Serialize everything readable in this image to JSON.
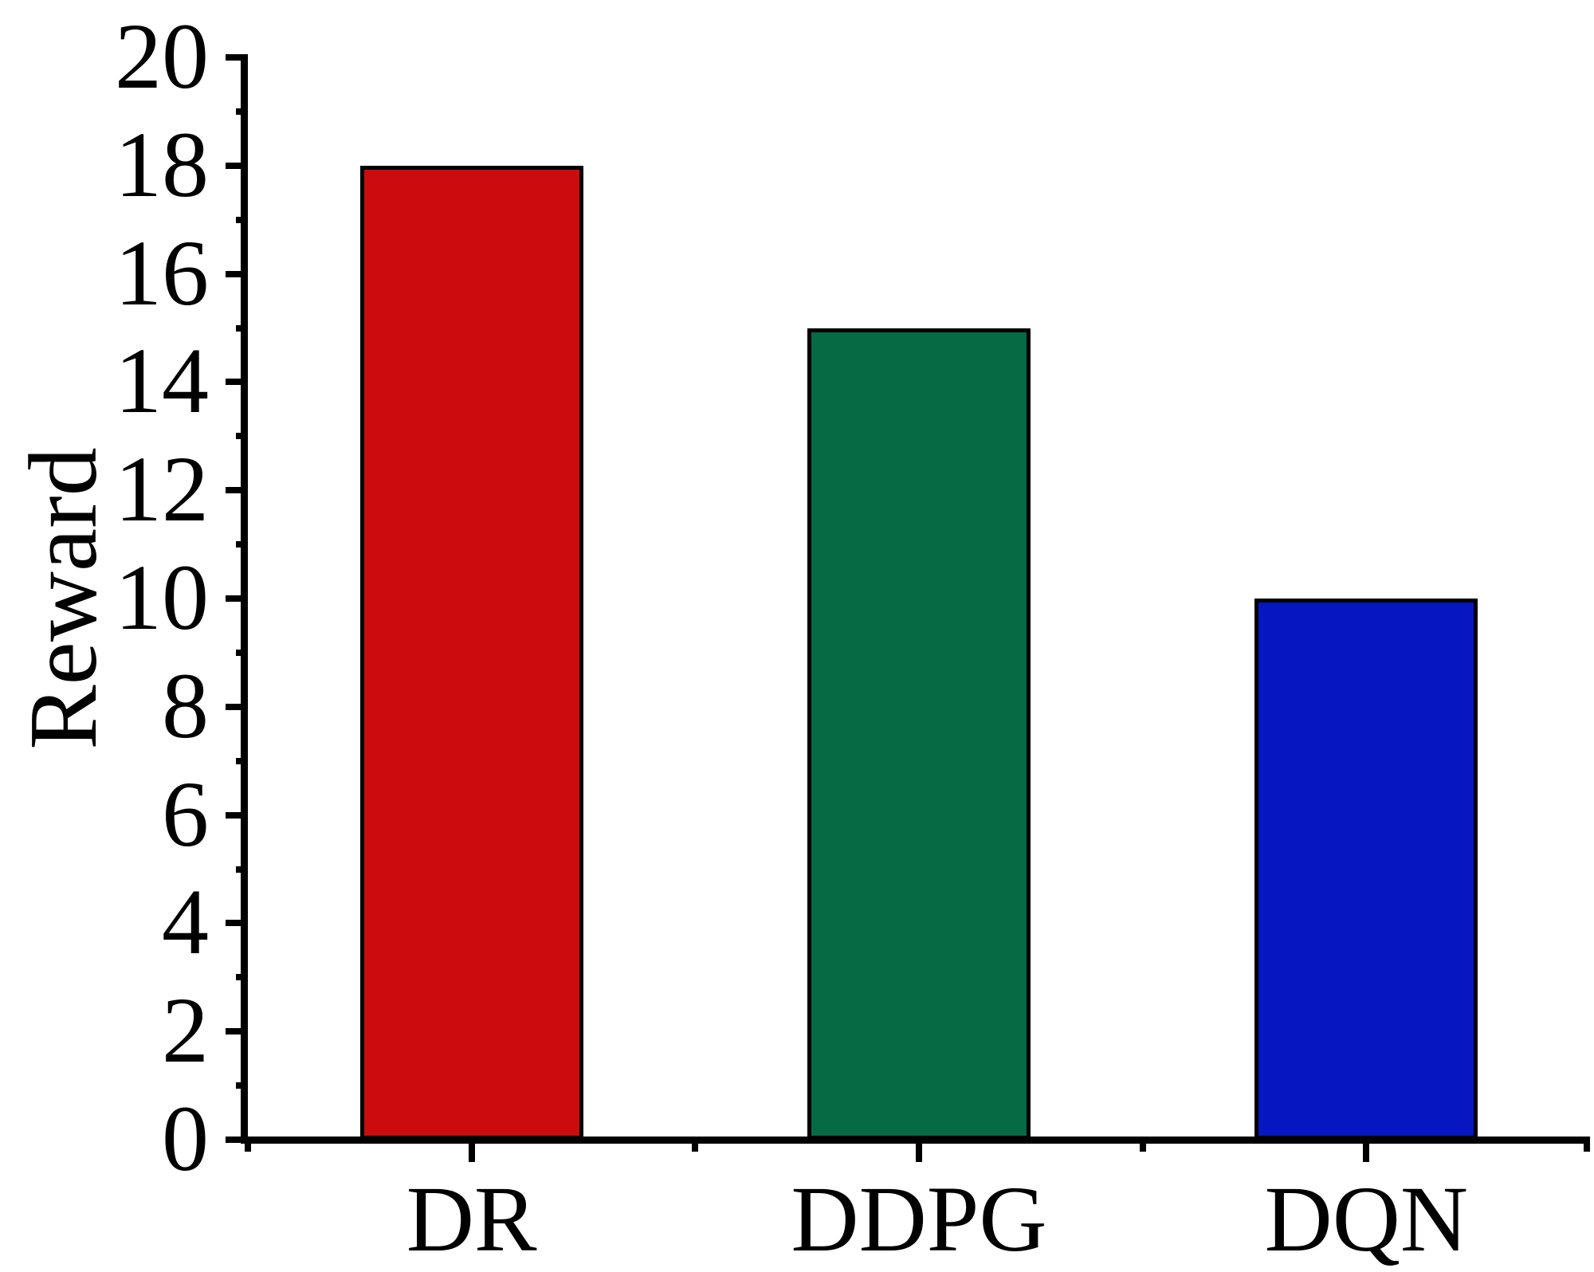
{
  "chart_data": {
    "type": "bar",
    "title": "",
    "categories": [
      "DR",
      "DDPG",
      "DQN"
    ],
    "values": [
      18,
      15,
      10
    ],
    "bar_colors": [
      "#cb0b0d",
      "#066a45",
      "#0617c1"
    ],
    "bar_edge_color": "#000000",
    "xlabel": "",
    "ylabel": "Reward",
    "ylim": [
      0,
      20
    ],
    "y_major_ticks": [
      0,
      2,
      4,
      6,
      8,
      10,
      12,
      14,
      16,
      18,
      20
    ],
    "y_minor_ticks": [
      1,
      3,
      5,
      7,
      9,
      11,
      13,
      15,
      17,
      19
    ],
    "grid": false,
    "legend": false,
    "axis_color": "#000000",
    "background_color": "#ffffff"
  }
}
